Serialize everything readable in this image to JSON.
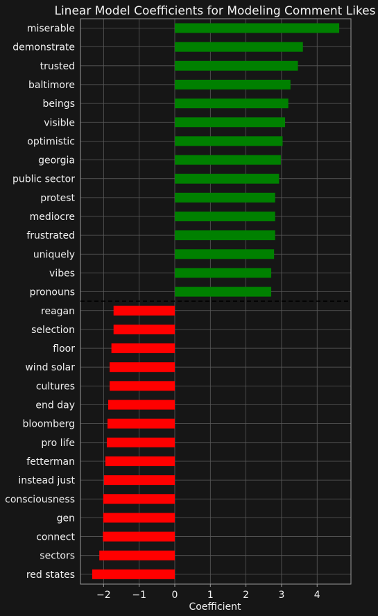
{
  "chart_data": {
    "type": "bar",
    "orientation": "horizontal",
    "title": "Linear Model Coefficients for Modeling Comment Likes",
    "xlabel": "Coefficient",
    "ylabel": "",
    "xlim": [
      -2.65,
      4.95
    ],
    "xticks": [
      -2,
      -1,
      0,
      1,
      2,
      3,
      4
    ],
    "xtick_labels": [
      "−2",
      "−1",
      "0",
      "1",
      "2",
      "3",
      "4"
    ],
    "grid": true,
    "categories": [
      "miserable",
      "demonstrate",
      "trusted",
      "baltimore",
      "beings",
      "visible",
      "optimistic",
      "georgia",
      "public sector",
      "protest",
      "mediocre",
      "frustrated",
      "uniquely",
      "vibes",
      "pronouns",
      "reagan",
      "selection",
      "floor",
      "wind solar",
      "cultures",
      "end day",
      "bloomberg",
      "pro life",
      "fetterman",
      "instead just",
      "consciousness",
      "gen",
      "connect",
      "sectors",
      "red states"
    ],
    "values": [
      4.62,
      3.6,
      3.46,
      3.25,
      3.19,
      3.1,
      3.03,
      2.98,
      2.93,
      2.82,
      2.82,
      2.82,
      2.79,
      2.71,
      2.71,
      -1.72,
      -1.72,
      -1.78,
      -1.83,
      -1.83,
      -1.87,
      -1.89,
      -1.91,
      -1.95,
      -1.99,
      -2.01,
      -2.01,
      -2.02,
      -2.12,
      -2.32
    ],
    "colors": {
      "positive": "#008000",
      "negative": "#ff0000",
      "background": "#161616",
      "grid": "#5a5a5a",
      "frame": "#9a9a9a",
      "text": "#f0f0f0",
      "separator": "#000000"
    }
  }
}
